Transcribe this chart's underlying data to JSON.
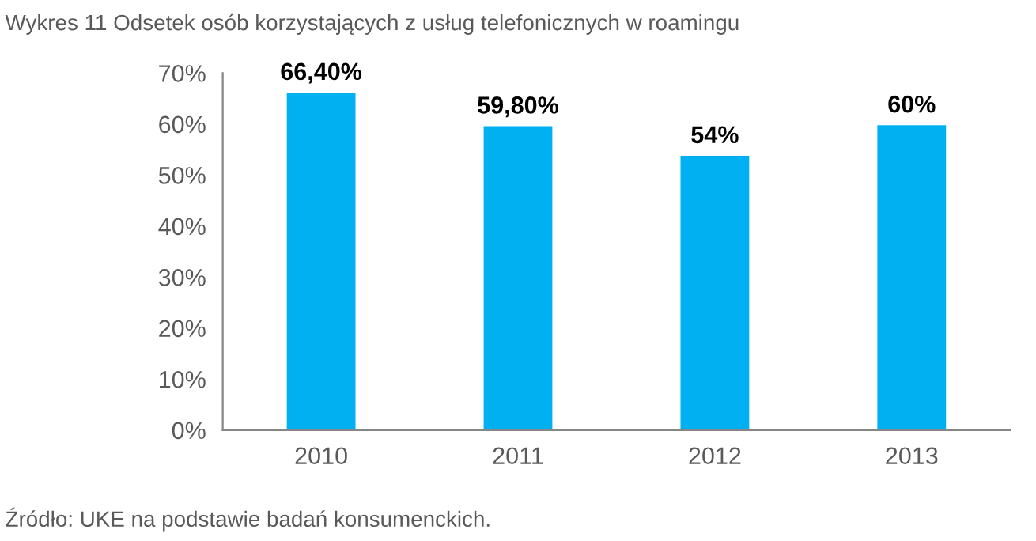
{
  "chart_data": {
    "type": "bar",
    "title": "Wykres 11 Odsetek osób korzystających z usług telefonicznych w roamingu",
    "categories": [
      "2010",
      "2011",
      "2012",
      "2013"
    ],
    "values": [
      66.4,
      59.8,
      54,
      60
    ],
    "value_labels": [
      "66,40%",
      "59,80%",
      "54%",
      "60%"
    ],
    "color": "#00b0f0",
    "ylim": [
      0,
      70
    ],
    "yticks": [
      {
        "value": 0,
        "label": "0%"
      },
      {
        "value": 10,
        "label": "10%"
      },
      {
        "value": 20,
        "label": "20%"
      },
      {
        "value": 30,
        "label": "30%"
      },
      {
        "value": 40,
        "label": "40%"
      },
      {
        "value": 50,
        "label": "50%"
      },
      {
        "value": 60,
        "label": "60%"
      },
      {
        "value": 70,
        "label": "70%"
      }
    ],
    "grid": false,
    "annotations": [
      "Źródło: UKE na podstawie badań konsumenckich."
    ]
  }
}
